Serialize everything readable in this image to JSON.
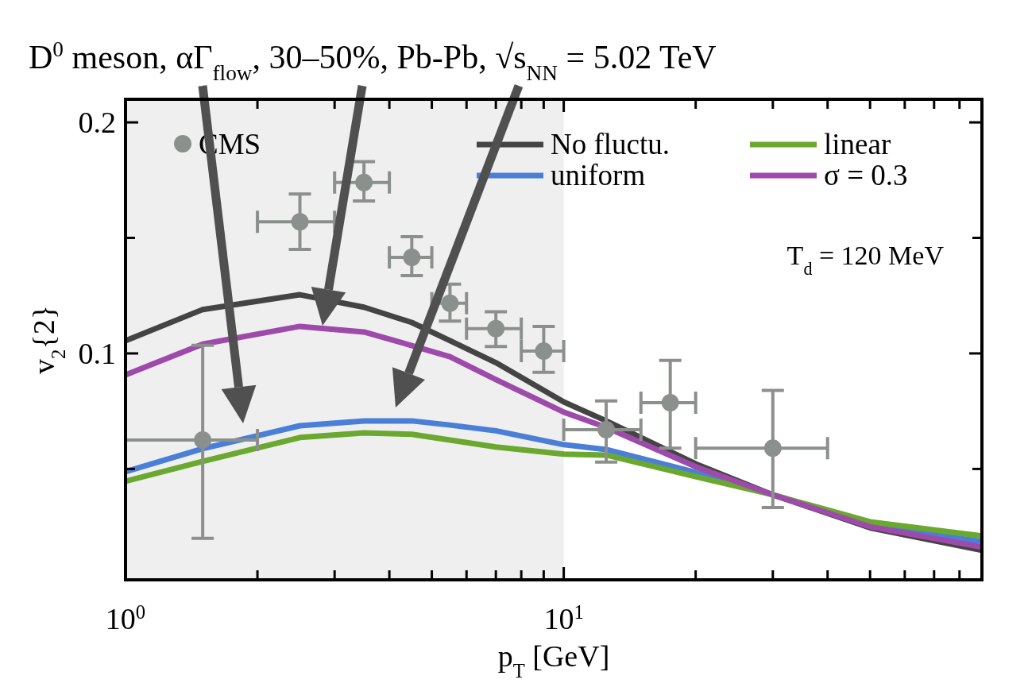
{
  "chart_data": {
    "type": "line",
    "title": "D$^{0}$ meson, αΓ$_{flow}$, 30–50%, Pb-Pb, √s$_{NN}$ = 5.02 TeV",
    "xlabel": "p$_{T}$ [GeV]",
    "ylabel": "v$_{2}${2}",
    "log": "x",
    "xlim": [
      1,
      90
    ],
    "ylim": [
      0.002,
      0.21
    ],
    "xticks": [
      {
        "value": 1,
        "label": "10$^{0}$"
      },
      {
        "value": 2,
        "label": null
      },
      {
        "value": 3,
        "label": null
      },
      {
        "value": 4,
        "label": null
      },
      {
        "value": 5,
        "label": null
      },
      {
        "value": 6,
        "label": null
      },
      {
        "value": 7,
        "label": null
      },
      {
        "value": 8,
        "label": null
      },
      {
        "value": 9,
        "label": null
      },
      {
        "value": 10,
        "label": "10$^{1}$"
      },
      {
        "value": 20,
        "label": null
      },
      {
        "value": 30,
        "label": null
      },
      {
        "value": 40,
        "label": null
      },
      {
        "value": 50,
        "label": null
      },
      {
        "value": 60,
        "label": null
      },
      {
        "value": 70,
        "label": null
      },
      {
        "value": 80,
        "label": null
      }
    ],
    "yticks": [
      {
        "value": 0.05,
        "label": null
      },
      {
        "value": 0.1,
        "label": "0.1"
      },
      {
        "value": 0.15,
        "label": null
      },
      {
        "value": 0.2,
        "label": "0.2"
      }
    ],
    "grid": false,
    "legend": "top",
    "bands": [
      {
        "axis": "x",
        "from": 1,
        "to": 10,
        "color": "#efefef"
      }
    ],
    "annotations": [
      "T$_{d}$ = 120 MeV"
    ],
    "series": [
      {
        "name": "CMS",
        "type": "scatter",
        "color": "#8c908c",
        "marker": "circle",
        "x": [
          1.5,
          2.5,
          3.5,
          4.5,
          5.5,
          7,
          9,
          12.5,
          17.5,
          30
        ],
        "values": [
          0.0625,
          0.157,
          0.174,
          0.1416,
          0.1217,
          0.1107,
          0.101,
          0.067,
          0.0787,
          0.059
        ],
        "errors": [
          [
            0.02,
            0.1035
          ],
          [
            0.145,
            0.169
          ],
          [
            0.166,
            0.183
          ],
          [
            0.1337,
            0.1505
          ],
          [
            0.114,
            0.13
          ],
          [
            0.103,
            0.118
          ],
          [
            0.0918,
            0.1117
          ],
          [
            0.053,
            0.0794
          ],
          [
            0.059,
            0.097
          ],
          [
            0.0333,
            0.084
          ]
        ],
        "xerrors": [
          [
            1,
            2
          ],
          [
            2,
            3
          ],
          [
            3,
            4
          ],
          [
            4,
            5
          ],
          [
            5,
            6
          ],
          [
            6,
            8
          ],
          [
            8,
            10
          ],
          [
            10,
            15
          ],
          [
            15,
            20
          ],
          [
            20,
            40
          ]
        ]
      },
      {
        "name": "No fluctu.",
        "color": "#444444",
        "x": [
          1,
          1.5,
          2.5,
          3.5,
          4.5,
          5.5,
          7,
          10,
          12.5,
          20,
          30,
          50,
          90
        ],
        "values": [
          0.1055,
          0.119,
          0.1254,
          0.12,
          0.1134,
          0.1055,
          0.096,
          0.079,
          0.0708,
          0.0522,
          0.0388,
          0.0245,
          0.0148
        ]
      },
      {
        "name": "uniform",
        "color": "#4a7fd8",
        "x": [
          1,
          1.5,
          2.5,
          3.5,
          4.5,
          5.5,
          7,
          10,
          12.5,
          20,
          30,
          50,
          90
        ],
        "values": [
          0.0488,
          0.0588,
          0.0687,
          0.0708,
          0.0708,
          0.069,
          0.0665,
          0.0605,
          0.0584,
          0.0485,
          0.0388,
          0.0255,
          0.0186
        ]
      },
      {
        "name": "linear",
        "color": "#6aa82f",
        "x": [
          1,
          1.5,
          2.5,
          3.5,
          4.5,
          5.5,
          7,
          10,
          12.5,
          20,
          30,
          50,
          90
        ],
        "values": [
          0.0447,
          0.0533,
          0.0636,
          0.0656,
          0.065,
          0.0625,
          0.0595,
          0.0564,
          0.056,
          0.0467,
          0.0388,
          0.0271,
          0.021
        ]
      },
      {
        "name": "σ = 0.3",
        "color": "#9e4aab",
        "x": [
          1,
          1.5,
          2.5,
          3.5,
          4.5,
          5.5,
          7,
          10,
          12.5,
          20,
          30,
          50,
          90
        ],
        "values": [
          0.0907,
          0.104,
          0.1117,
          0.1093,
          0.1034,
          0.0986,
          0.0887,
          0.0746,
          0.068,
          0.051,
          0.0388,
          0.025,
          0.0162
        ]
      }
    ]
  }
}
